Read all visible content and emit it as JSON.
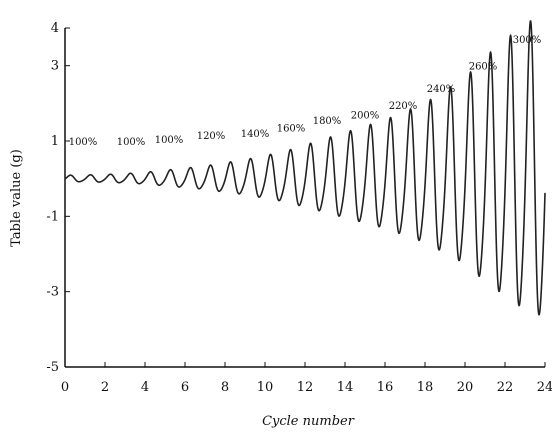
{
  "chart_data": {
    "type": "line",
    "title": "",
    "xlabel": "Cycle number",
    "ylabel": "Table value (g)",
    "xlim": [
      0,
      24
    ],
    "ylim": [
      -5,
      4
    ],
    "xticks": [
      0,
      2,
      4,
      6,
      8,
      10,
      12,
      14,
      16,
      18,
      20,
      22,
      24
    ],
    "xtick_labels": [
      "0",
      "2",
      "4",
      "6",
      "8",
      "10",
      "12",
      "14",
      "16",
      "18",
      "20",
      "22",
      "24"
    ],
    "yticks": [
      -5,
      -3,
      -1,
      1,
      3,
      4
    ],
    "ytick_labels": [
      "-5",
      "-3",
      "-1",
      "1",
      "3",
      "4"
    ],
    "grid": false,
    "series": [
      {
        "name": "",
        "color": "#222222",
        "cycles_per_unit": 1,
        "amplitude_envelope": [
          [
            0,
            0.08
          ],
          [
            1,
            0.09
          ],
          [
            2,
            0.1
          ],
          [
            3,
            0.12
          ],
          [
            4,
            0.15
          ],
          [
            5,
            0.2
          ],
          [
            6,
            0.25
          ],
          [
            7,
            0.3
          ],
          [
            8,
            0.38
          ],
          [
            9,
            0.45
          ],
          [
            10,
            0.55
          ],
          [
            11,
            0.65
          ],
          [
            12,
            0.8
          ],
          [
            13,
            0.95
          ],
          [
            14,
            1.1
          ],
          [
            15,
            1.25
          ],
          [
            16,
            1.4
          ],
          [
            17,
            1.6
          ],
          [
            18,
            1.8
          ],
          [
            19,
            2.1
          ],
          [
            20,
            2.4
          ],
          [
            21,
            2.9
          ],
          [
            22,
            3.3
          ],
          [
            23,
            3.7
          ],
          [
            24,
            3.9
          ]
        ]
      }
    ],
    "annotations": [
      {
        "text": "100%",
        "x": 0.9,
        "y": 0.9
      },
      {
        "text": "100%",
        "x": 3.3,
        "y": 0.9
      },
      {
        "text": "100%",
        "x": 5.2,
        "y": 0.95
      },
      {
        "text": "120%",
        "x": 7.3,
        "y": 1.05
      },
      {
        "text": "140%",
        "x": 9.5,
        "y": 1.1
      },
      {
        "text": "160%",
        "x": 11.3,
        "y": 1.25
      },
      {
        "text": "180%",
        "x": 13.1,
        "y": 1.45
      },
      {
        "text": "200%",
        "x": 15.0,
        "y": 1.6
      },
      {
        "text": "220%",
        "x": 16.9,
        "y": 1.85
      },
      {
        "text": "240%",
        "x": 18.8,
        "y": 2.3
      },
      {
        "text": "260%",
        "x": 20.9,
        "y": 2.9
      },
      {
        "text": "300%",
        "x": 23.1,
        "y": 3.6
      }
    ]
  }
}
